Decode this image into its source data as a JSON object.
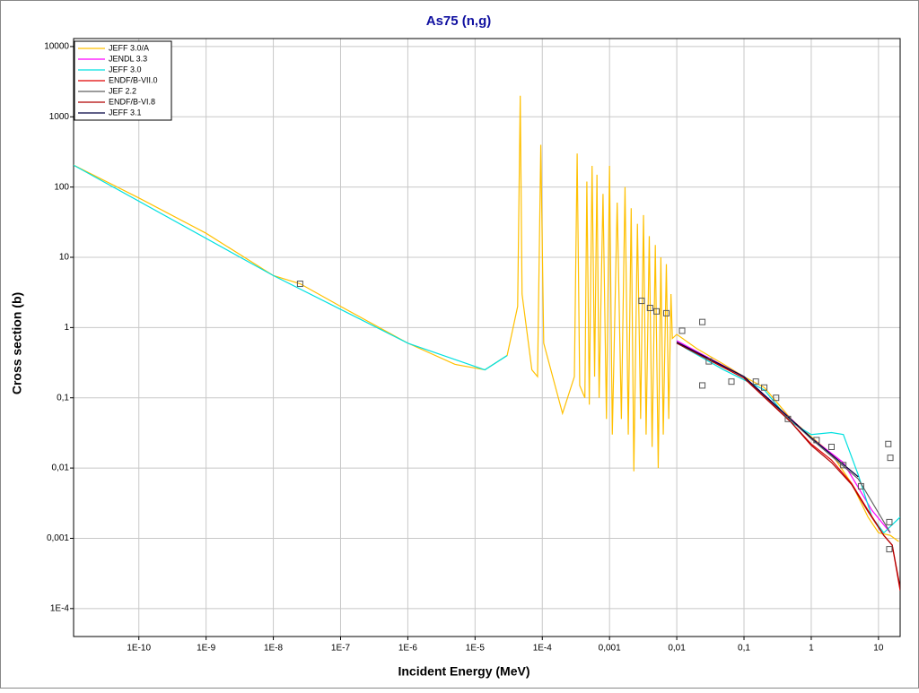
{
  "chart_data": {
    "type": "line",
    "title": "As75 (n,g)",
    "x_label": "Incident Energy (MeV)",
    "y_label": "Cross section (b)",
    "x_log": true,
    "y_log": true,
    "grid": true,
    "legend": "top-left",
    "xlim": [
      1.07e-11,
      21
    ],
    "ylim": [
      4e-05,
      13000
    ],
    "xticks": [
      {
        "value": 1e-10,
        "label": "1E-10"
      },
      {
        "value": 1e-09,
        "label": "1E-9"
      },
      {
        "value": 1e-08,
        "label": "1E-8"
      },
      {
        "value": 1e-07,
        "label": "1E-7"
      },
      {
        "value": 1e-06,
        "label": "1E-6"
      },
      {
        "value": 1e-05,
        "label": "1E-5"
      },
      {
        "value": 0.0001,
        "label": "1E-4"
      },
      {
        "value": 0.001,
        "label": "0,001"
      },
      {
        "value": 0.01,
        "label": "0,01"
      },
      {
        "value": 0.1,
        "label": "0,1"
      },
      1,
      10
    ],
    "yticks": [
      {
        "value": 0.0001,
        "label": "1E-4"
      },
      {
        "value": 0.001,
        "label": "0,001"
      },
      {
        "value": 0.01,
        "label": "0,01"
      },
      {
        "value": 0.1,
        "label": "0,1"
      },
      1,
      10,
      100,
      1000,
      10000
    ],
    "series": [
      {
        "name": "JEFF 3.0/A",
        "color": "#ffc000",
        "x": [
          1.07e-11,
          1e-10,
          1e-09,
          1e-08,
          2.5e-08,
          1e-07,
          1e-06,
          5e-06,
          1.4e-05,
          3e-05,
          4.3e-05,
          4.7e-05,
          5e-05,
          7e-05,
          8.5e-05,
          9.5e-05,
          0.000105,
          0.0002,
          0.0003,
          0.00033,
          0.00036,
          0.00043,
          0.00046,
          0.0005,
          0.00055,
          0.0006,
          0.00065,
          0.0007,
          0.0008,
          0.0009,
          0.001,
          0.0011,
          0.0013,
          0.0015,
          0.0017,
          0.0019,
          0.0021,
          0.0023,
          0.0026,
          0.0029,
          0.0032,
          0.0035,
          0.0039,
          0.0043,
          0.0048,
          0.0053,
          0.0058,
          0.0063,
          0.007,
          0.0076,
          0.0082,
          0.0086,
          0.01,
          0.02,
          0.05,
          0.1,
          0.2,
          0.5,
          1,
          2,
          4,
          7,
          10,
          15,
          20
        ],
        "values": [
          205,
          70,
          22,
          5.5,
          4.2,
          2,
          0.6,
          0.3,
          0.25,
          0.4,
          2,
          2000,
          3,
          0.25,
          0.2,
          400,
          0.6,
          0.06,
          0.2,
          300,
          0.15,
          0.1,
          120,
          0.08,
          200,
          0.2,
          150,
          0.1,
          80,
          0.05,
          200,
          0.03,
          60,
          0.05,
          100,
          0.03,
          50,
          0.009,
          30,
          0.05,
          40,
          0.03,
          20,
          0.02,
          15,
          0.01,
          10,
          0.03,
          8,
          0.05,
          3,
          0.7,
          0.8,
          0.5,
          0.3,
          0.2,
          0.14,
          0.05,
          0.028,
          0.016,
          0.006,
          0.002,
          0.0012,
          0.0011,
          0.0009
        ]
      },
      {
        "name": "JENDL 3.3",
        "color": "#ff00ff",
        "x": [
          0.01,
          0.1,
          0.5,
          1,
          3,
          8,
          15
        ],
        "values": [
          0.65,
          0.2,
          0.05,
          0.027,
          0.012,
          0.0025,
          0.0012
        ]
      },
      {
        "name": "JEFF 3.0",
        "color": "#00e0e0",
        "x": [
          1.07e-11,
          1e-08,
          1e-06,
          1.4e-05,
          3e-05,
          0.0086,
          0.01,
          0.05,
          0.2,
          0.5,
          1,
          2,
          3,
          5,
          8,
          12,
          21
        ],
        "values": [
          205,
          5.5,
          0.6,
          0.25,
          0.4,
          null,
          0.6,
          0.25,
          0.13,
          0.045,
          0.03,
          0.032,
          0.03,
          0.008,
          0.002,
          0.0012,
          0.002
        ]
      },
      {
        "name": "ENDF/B-VII.0",
        "color": "#e00000",
        "x": [
          0.01,
          0.1,
          0.5,
          1,
          2,
          4,
          7,
          12,
          16,
          21
        ],
        "values": [
          0.6,
          0.2,
          0.045,
          0.022,
          0.013,
          0.006,
          0.0025,
          0.0011,
          0.0008,
          0.00018
        ]
      },
      {
        "name": "JEF 2.2",
        "color": "#606060",
        "x": [
          0.01,
          0.1,
          1,
          5,
          15
        ],
        "values": [
          0.62,
          0.2,
          0.026,
          0.007,
          0.0012
        ]
      },
      {
        "name": "ENDF/B-VI.8",
        "color": "#b00000",
        "x": [
          0.01,
          0.1,
          0.5,
          1,
          2,
          4,
          7,
          12,
          16,
          21
        ],
        "values": [
          0.6,
          0.19,
          0.045,
          0.021,
          0.012,
          0.0058,
          0.0024,
          0.0011,
          0.0008,
          0.0002
        ]
      },
      {
        "name": "JEFF 3.1",
        "color": "#000040",
        "x": [
          0.01,
          0.1,
          1,
          5
        ],
        "values": [
          0.62,
          0.2,
          0.027,
          0.0075
        ]
      }
    ],
    "points": {
      "color": "#555555",
      "x": [
        2.5e-08,
        0.003,
        0.004,
        0.005,
        0.007,
        0.012,
        0.024,
        0.024,
        0.03,
        0.065,
        0.15,
        0.2,
        0.3,
        0.45,
        1.2,
        2,
        3,
        5.5,
        14,
        15,
        14.5,
        14.5
      ],
      "values": [
        4.2,
        2.4,
        1.9,
        1.7,
        1.6,
        0.9,
        1.2,
        0.15,
        0.33,
        0.17,
        0.17,
        0.14,
        0.1,
        0.05,
        0.025,
        0.02,
        0.011,
        0.0055,
        0.022,
        0.014,
        0.0017,
        0.0007
      ]
    }
  }
}
